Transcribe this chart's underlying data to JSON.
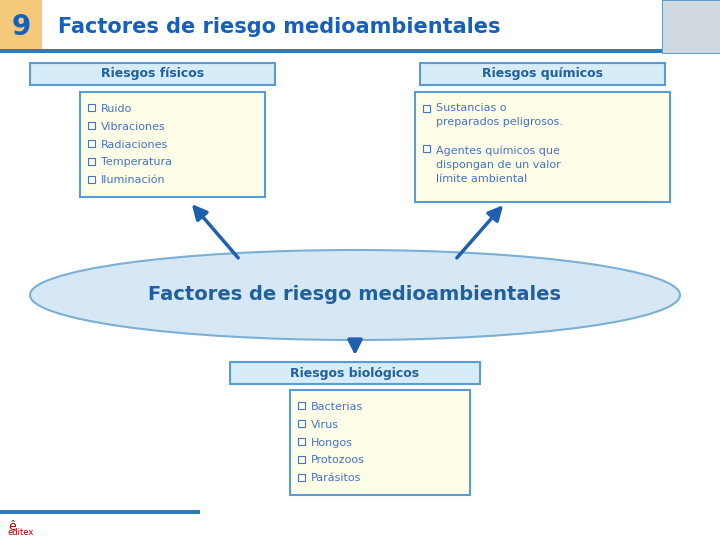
{
  "title": "Factores de riesgo medioambientales",
  "slide_number": "9",
  "header_bg": "#F5C97A",
  "header_text_color": "#1560BD",
  "header_border_color": "#2B7BBD",
  "bg_color": "#FFFFFF",
  "box_border_color": "#5B9BD5",
  "box_bg_color": "#FEFEE8",
  "label_box_bg": "#D6ECF8",
  "label_box_border": "#5B9BD5",
  "label_text_color": "#2060A0",
  "body_text_color": "#4472C4",
  "ellipse_fill": "#D6E8F5",
  "ellipse_border": "#7BAFD4",
  "ellipse_text": "Factores de riesgo medioambientales",
  "arrow_color": "#1F5FAD",
  "fisicos_label": "Riesgos físicos",
  "quimicos_label": "Riesgos químicos",
  "biologicos_label": "Riesgos biológicos",
  "fisicos_items": [
    "Ruido",
    "Vibraciones",
    "Radiaciones",
    "Temperatura",
    "Iluminación"
  ],
  "quimicos_item1": "Sustancias o\npreparados peligrosos.",
  "quimicos_item2": "Agentes químicos que\ndispongan de un valor\nlímite ambiental",
  "biologicos_items": [
    "Bacterias",
    "Virus",
    "Hongos",
    "Protozoos",
    "Parásitos"
  ]
}
